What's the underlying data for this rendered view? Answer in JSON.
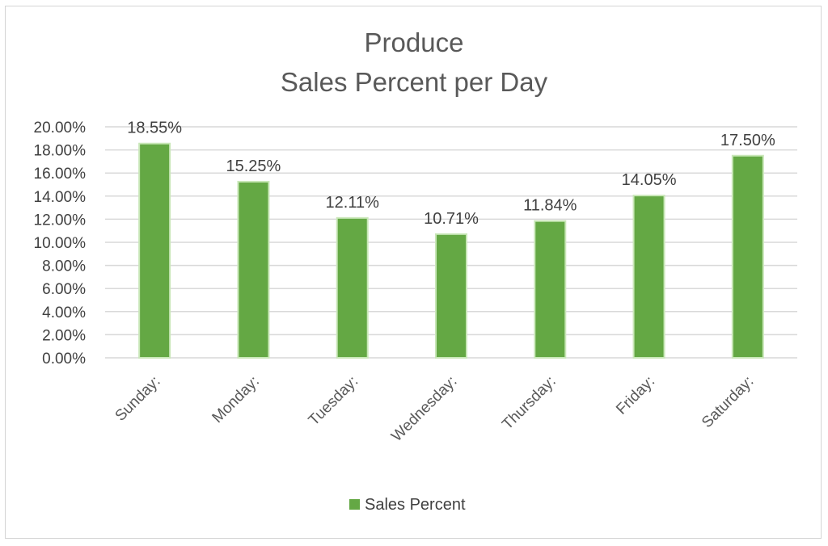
{
  "chart_data": {
    "type": "bar",
    "title_lines": [
      "Produce",
      "Sales Percent per Day"
    ],
    "categories": [
      "Sunday:",
      "Monday:",
      "Tuesday:",
      "Wednesday:",
      "Thursday:",
      "Friday:",
      "Saturday:"
    ],
    "series": [
      {
        "name": "Sales Percent",
        "values": [
          18.55,
          15.25,
          12.11,
          10.71,
          11.84,
          14.05,
          17.5
        ],
        "data_labels": [
          "18.55%",
          "15.25%",
          "12.11%",
          "10.71%",
          "11.84%",
          "14.05%",
          "17.50%"
        ]
      }
    ],
    "y_ticks": [
      "0.00%",
      "2.00%",
      "4.00%",
      "6.00%",
      "8.00%",
      "10.00%",
      "12.00%",
      "14.00%",
      "16.00%",
      "18.00%",
      "20.00%"
    ],
    "ylim": [
      0,
      20
    ],
    "y_step": 2,
    "xlabel": "",
    "ylabel": "",
    "grid": true,
    "legend_position": "bottom",
    "bar_color": "#64a844",
    "bar_edge_color": "#c9e7b8",
    "grid_color": "#d9d9d9"
  }
}
